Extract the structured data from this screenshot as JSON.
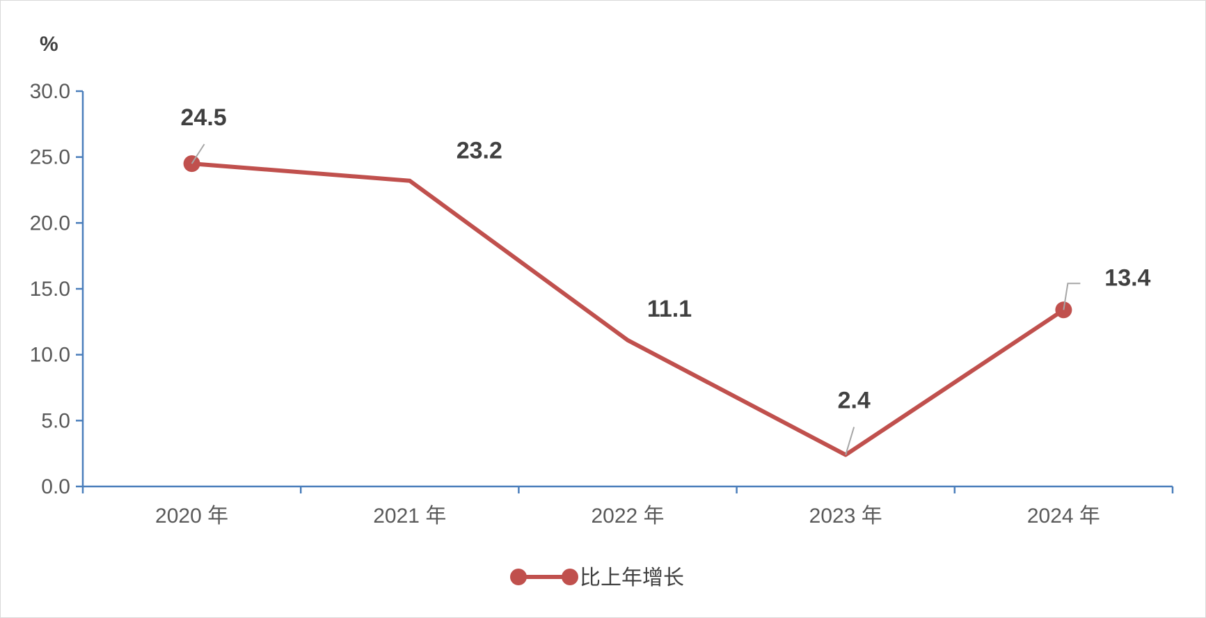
{
  "chart_data": {
    "type": "line",
    "categories": [
      "2020 年",
      "2021 年",
      "2022 年",
      "2023 年",
      "2024 年"
    ],
    "series": [
      {
        "name": "比上年增长",
        "values": [
          24.5,
          23.2,
          11.1,
          2.4,
          13.4
        ],
        "color": "#c0504d",
        "markers": [
          true,
          false,
          false,
          false,
          true
        ]
      }
    ],
    "data_labels": [
      "24.5",
      "23.2",
      "11.1",
      "2.4",
      "13.4"
    ],
    "y_unit": "%",
    "ylim": [
      0,
      30
    ],
    "yticks": [
      0,
      5,
      10,
      15,
      20,
      25,
      30
    ],
    "ytick_labels": [
      "0.0",
      "5.0",
      "10.0",
      "15.0",
      "20.0",
      "25.0",
      "30.0"
    ],
    "grid": false,
    "legend_position": "bottom",
    "axis_color": "#4a7ebb"
  }
}
